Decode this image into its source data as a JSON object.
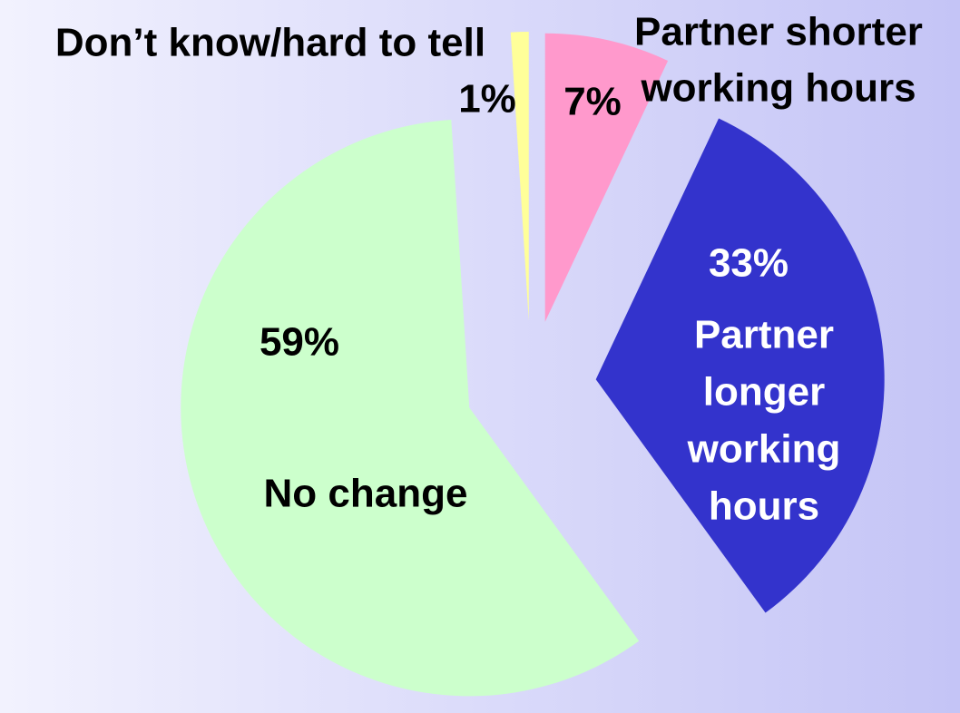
{
  "chart_data": {
    "type": "pie",
    "categories": [
      [
        "Partner shorter",
        "working hours"
      ],
      [
        "Partner",
        "longer",
        "working",
        "hours"
      ],
      [
        "No change"
      ],
      [
        "Don’t know/hard to tell"
      ]
    ],
    "values": [
      7,
      33,
      59,
      1
    ],
    "value_labels": [
      "7%",
      "33%",
      "59%",
      "1%"
    ],
    "colors": [
      "#ff99cc",
      "#3333cc",
      "#ccffcc",
      "#ffff99"
    ],
    "label_colors": [
      "#000000",
      "#ffffff",
      "#000000",
      "#000000"
    ],
    "exploded": true
  }
}
